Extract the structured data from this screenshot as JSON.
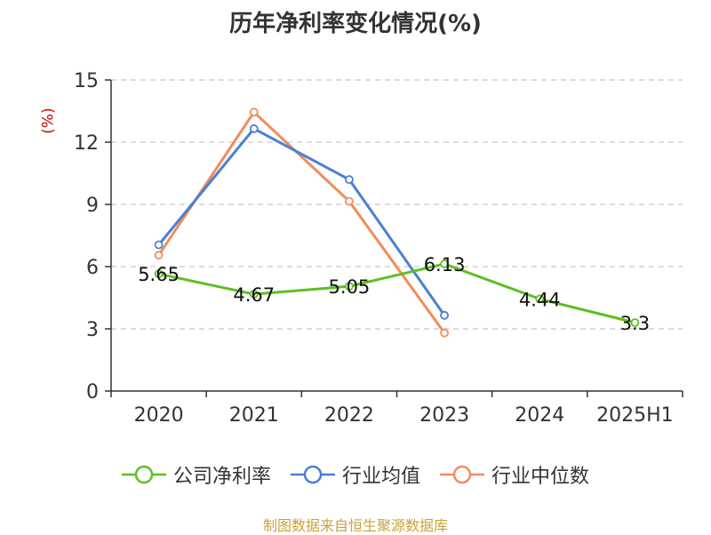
{
  "chart_data": {
    "type": "line",
    "title": "历年净利率变化情况(%)",
    "unit_label": "(%)",
    "categories": [
      "2020",
      "2021",
      "2022",
      "2023",
      "2024",
      "2025H1"
    ],
    "ylim": [
      0,
      15
    ],
    "yticks": [
      0,
      3,
      6,
      9,
      12,
      15
    ],
    "grid": true,
    "legend_position": "bottom",
    "series": [
      {
        "name": "公司净利率",
        "color": "#5dbf22",
        "values": [
          5.65,
          4.67,
          5.05,
          6.13,
          4.44,
          3.3
        ],
        "labels": [
          "5.65",
          "4.67",
          "5.05",
          "6.13",
          "4.44",
          "3.3"
        ]
      },
      {
        "name": "行业均值",
        "color": "#4a7fd6",
        "values": [
          7.05,
          12.65,
          10.2,
          3.65,
          null,
          null
        ]
      },
      {
        "name": "行业中位数",
        "color": "#f28c5a",
        "values": [
          6.55,
          13.45,
          9.15,
          2.8,
          null,
          null
        ]
      }
    ]
  },
  "footer": "制图数据来自恒生聚源数据库"
}
